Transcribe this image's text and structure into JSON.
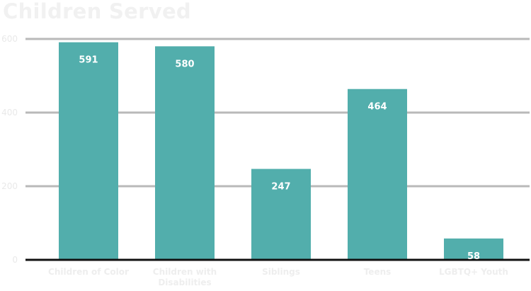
{
  "chart_data": {
    "type": "bar",
    "title": "Children Served",
    "categories": [
      [
        "Children of Color"
      ],
      [
        "Children with",
        "Disabilities"
      ],
      [
        "Siblings"
      ],
      [
        "Teens"
      ],
      [
        "LGBTQ+ Youth"
      ]
    ],
    "values": [
      591,
      580,
      247,
      464,
      58
    ],
    "data_labels": [
      "591",
      "580",
      "247",
      "464",
      "58"
    ],
    "y_ticks": [
      0,
      200,
      400,
      600
    ],
    "y_tick_labels": [
      "0",
      "200",
      "400",
      "600"
    ],
    "ylim": [
      0,
      600
    ],
    "grid": true,
    "legend": "none",
    "colors": {
      "bar": "#52aeac",
      "grid": "#b9b9b9",
      "baseline": "#111111"
    }
  }
}
